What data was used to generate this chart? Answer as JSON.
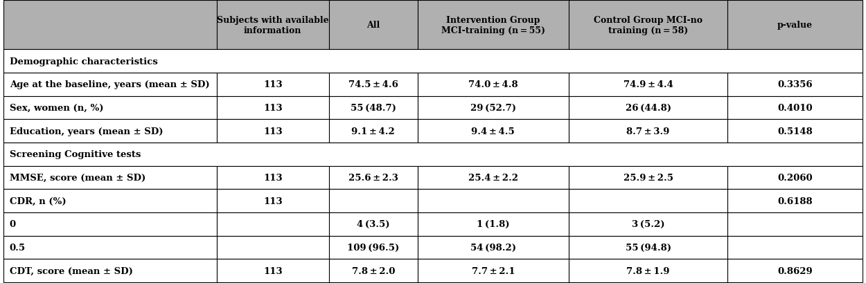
{
  "header": [
    "",
    "Subjects with available\ninformation",
    "All",
    "Intervention Group\nMCI-training (n = 55)",
    "Control Group MCI-no\ntraining (n = 58)",
    "p-value"
  ],
  "col_starts": [
    0.004,
    0.25,
    0.38,
    0.482,
    0.657,
    0.84
  ],
  "col_ends": [
    0.25,
    0.38,
    0.482,
    0.657,
    0.84,
    0.996
  ],
  "rows": [
    {
      "type": "section",
      "label": "Demographic characteristics"
    },
    {
      "type": "data",
      "cells": [
        "Age at the baseline, years (mean ± SD)",
        "113",
        "74.5 ± 4.6",
        "74.0 ± 4.8",
        "74.9 ± 4.4",
        "0.3356"
      ]
    },
    {
      "type": "data",
      "cells": [
        "Sex, women (n, %)",
        "113",
        "55 (48.7)",
        "29 (52.7)",
        "26 (44.8)",
        "0.4010"
      ]
    },
    {
      "type": "data",
      "cells": [
        "Education, years (mean ± SD)",
        "113",
        "9.1 ± 4.2",
        "9.4 ± 4.5",
        "8.7 ± 3.9",
        "0.5148"
      ]
    },
    {
      "type": "section",
      "label": "Screening Cognitive tests"
    },
    {
      "type": "data",
      "cells": [
        "MMSE, score (mean ± SD)",
        "113",
        "25.6 ± 2.3",
        "25.4 ± 2.2",
        "25.9 ± 2.5",
        "0.2060"
      ]
    },
    {
      "type": "cdr_block",
      "cells_top": [
        "CDR, n (%)",
        "113",
        "",
        "",
        "",
        "0.6188"
      ],
      "cells_mid": [
        "0",
        "",
        "4 (3.5)",
        "1 (1.8)",
        "3 (5.2)",
        ""
      ],
      "cells_bot": [
        "0.5",
        "",
        "109 (96.5)",
        "54 (98.2)",
        "55 (94.8)",
        ""
      ]
    },
    {
      "type": "data",
      "cells": [
        "CDT, score (mean ± SD)",
        "113",
        "7.8 ± 2.0",
        "7.7 ± 2.1",
        "7.8 ± 1.9",
        "0.8629"
      ]
    }
  ],
  "header_bg": "#b0b0b0",
  "data_bg": "#ffffff",
  "border_color": "#000000",
  "text_color": "#000000",
  "fig_bg": "#ffffff",
  "header_fontsize": 9.0,
  "data_fontsize": 9.5,
  "section_fontsize": 9.5
}
